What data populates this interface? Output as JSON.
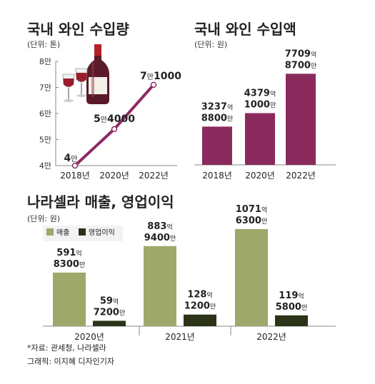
{
  "colors": {
    "volume_line": "#8e2a63",
    "import_bar": "#8a2a5c",
    "revenue_bar": "#9ea86a",
    "profit_bar": "#2b3318",
    "axis": "#777777",
    "text": "#222222"
  },
  "icon": "wine-bottle-and-glasses-icon",
  "chart_data": [
    {
      "type": "line",
      "title": "국내 와인 수입량",
      "unit_label": "(단위: 톤)",
      "x": [
        "2018년",
        "2020년",
        "2022년"
      ],
      "values": [
        40000,
        54000,
        71000
      ],
      "value_labels": [
        {
          "prefix": "4",
          "unit": "만",
          "rest": ""
        },
        {
          "prefix": "5",
          "unit": "만",
          "rest": "4000"
        },
        {
          "prefix": "7",
          "unit": "만",
          "rest": "1000"
        }
      ],
      "ylim": [
        40000,
        80000
      ],
      "yticks": [
        {
          "v": 40000,
          "label": "4만"
        },
        {
          "v": 50000,
          "label": "5만"
        },
        {
          "v": 60000,
          "label": "6만"
        },
        {
          "v": 70000,
          "label": "7만"
        },
        {
          "v": 80000,
          "label": "8만"
        }
      ],
      "grid": false
    },
    {
      "type": "bar",
      "title": "국내 와인 수입액",
      "unit_label": "(단위: 원)",
      "categories": [
        "2018년",
        "2020년",
        "2022년"
      ],
      "values": [
        323788000000,
        437910000000,
        770987000000
      ],
      "value_labels": [
        [
          {
            "num": "3237",
            "unit": "억"
          },
          {
            "num": "8800",
            "unit": "만"
          }
        ],
        [
          {
            "num": "4379",
            "unit": "억"
          },
          {
            "num": "1000",
            "unit": "만"
          }
        ],
        [
          {
            "num": "7709",
            "unit": "억"
          },
          {
            "num": "8700",
            "unit": "만"
          }
        ]
      ],
      "ylim": [
        0,
        900000000000
      ]
    },
    {
      "type": "bar",
      "title": "나라셀라 매출, 영업이익",
      "unit_label": "(단위: 원)",
      "categories": [
        "2020년",
        "2021년",
        "2022년"
      ],
      "legend": [
        "매출",
        "영업이익"
      ],
      "series": [
        {
          "name": "매출",
          "values": [
            59183000000,
            88394000000,
            107163000000
          ],
          "value_labels": [
            [
              {
                "num": "591",
                "unit": "억"
              },
              {
                "num": "8300",
                "unit": "만"
              }
            ],
            [
              {
                "num": "883",
                "unit": "억"
              },
              {
                "num": "9400",
                "unit": "만"
              }
            ],
            [
              {
                "num": "1071",
                "unit": "억"
              },
              {
                "num": "6300",
                "unit": "만"
              }
            ]
          ]
        },
        {
          "name": "영업이익",
          "values": [
            5972000000,
            12812000000,
            11958000000
          ],
          "value_labels": [
            [
              {
                "num": "59",
                "unit": "억"
              },
              {
                "num": "7200",
                "unit": "만"
              }
            ],
            [
              {
                "num": "128",
                "unit": "억"
              },
              {
                "num": "1200",
                "unit": "만"
              }
            ],
            [
              {
                "num": "119",
                "unit": "억"
              },
              {
                "num": "5800",
                "unit": "만"
              }
            ]
          ]
        }
      ],
      "ylim": [
        0,
        130000000000
      ]
    }
  ],
  "footer": {
    "source": "*자료: 관세청, 나라셀라",
    "credit": "그래픽: 이지혜 디자인기자"
  }
}
